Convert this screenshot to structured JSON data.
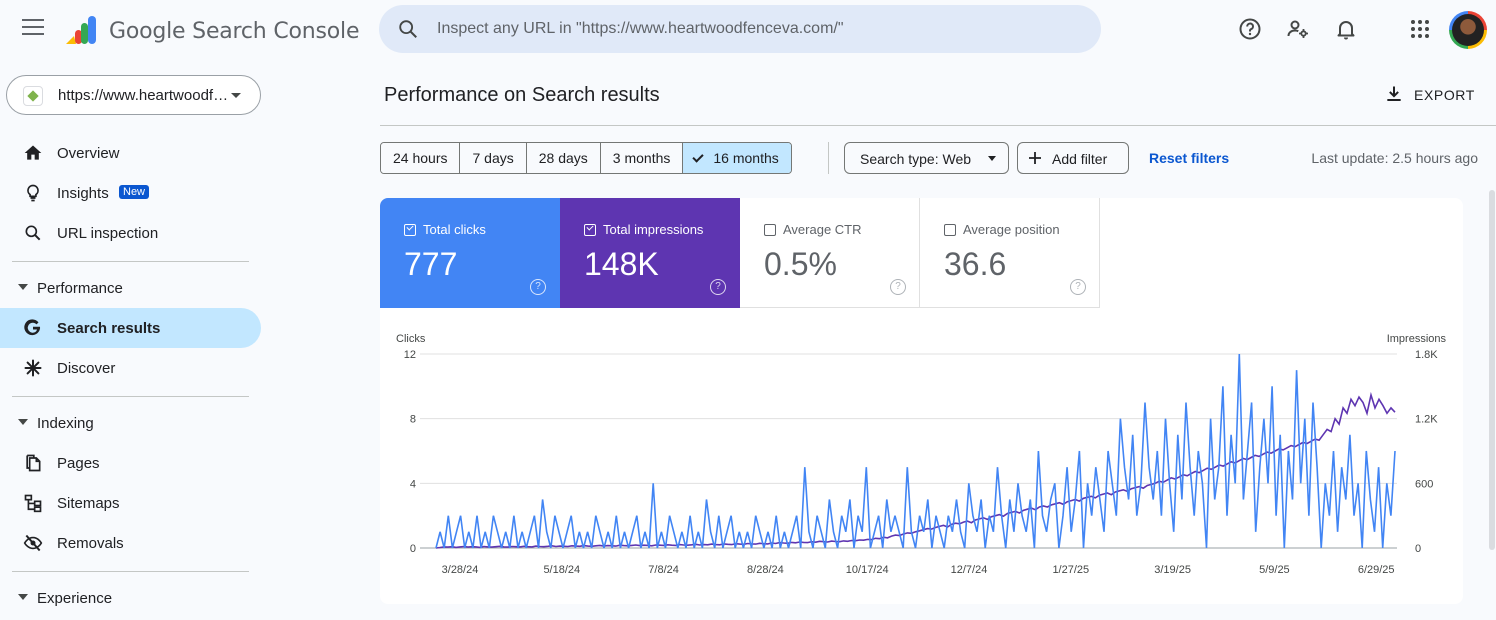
{
  "app": {
    "title": "Google Search Console"
  },
  "search": {
    "placeholder": "Inspect any URL in \"https://www.heartwoodfenceva.com/\""
  },
  "property": {
    "label": "https://www.heartwoodfenceva.com/"
  },
  "topbar_icons": [
    "help-icon",
    "manage-users-icon",
    "bell-icon",
    "apps-grid-icon"
  ],
  "sidebar": {
    "items": [
      {
        "label": "Overview",
        "icon": "home-icon"
      },
      {
        "label": "Insights",
        "icon": "lightbulb-icon",
        "badge": "New"
      },
      {
        "label": "URL inspection",
        "icon": "search-icon"
      }
    ],
    "sections": [
      {
        "label": "Performance",
        "items": [
          {
            "label": "Search results",
            "icon": "google-g-icon",
            "active": true
          },
          {
            "label": "Discover",
            "icon": "asterisk-icon"
          }
        ]
      },
      {
        "label": "Indexing",
        "items": [
          {
            "label": "Pages",
            "icon": "pages-icon"
          },
          {
            "label": "Sitemaps",
            "icon": "sitemap-icon"
          },
          {
            "label": "Removals",
            "icon": "eye-off-icon"
          }
        ]
      },
      {
        "label": "Experience",
        "items": []
      }
    ]
  },
  "main": {
    "title": "Performance on Search results",
    "export_label": "EXPORT",
    "date_ranges": [
      "24 hours",
      "7 days",
      "28 days",
      "3 months",
      "16 months"
    ],
    "selected_range": "16 months",
    "search_type": "Search type: Web",
    "add_filter": "Add filter",
    "reset_filters": "Reset filters",
    "last_update": "Last update: 2.5 hours ago"
  },
  "metrics": [
    {
      "label": "Total clicks",
      "value": "777",
      "checked": true,
      "color": "#4285f4"
    },
    {
      "label": "Total impressions",
      "value": "148K",
      "checked": true,
      "color": "#5e35b1"
    },
    {
      "label": "Average CTR",
      "value": "0.5%",
      "checked": false
    },
    {
      "label": "Average position",
      "value": "36.6",
      "checked": false
    }
  ],
  "chart_data": {
    "type": "line",
    "x_tick_labels": [
      "3/28/24",
      "5/18/24",
      "7/8/24",
      "8/28/24",
      "10/17/24",
      "12/7/24",
      "1/27/25",
      "3/19/25",
      "5/9/25",
      "6/29/25"
    ],
    "left_axis": {
      "label": "Clicks",
      "ticks": [
        "0",
        "4",
        "8",
        "12"
      ],
      "ylim": [
        0,
        12
      ]
    },
    "right_axis": {
      "label": "Impressions",
      "ticks": [
        "0",
        "600",
        "1.2K",
        "1.8K"
      ],
      "ylim": [
        0,
        1800
      ]
    },
    "series": [
      {
        "name": "Clicks",
        "axis": "left",
        "color": "#4285f4",
        "values": [
          0,
          1,
          0,
          2,
          0,
          1,
          2,
          0,
          1,
          0,
          2,
          0,
          1,
          0,
          2,
          1,
          0,
          1,
          0,
          2,
          0,
          1,
          0,
          1,
          2,
          0,
          3,
          1,
          0,
          2,
          1,
          0,
          1,
          2,
          0,
          1,
          0,
          1,
          0,
          2,
          1,
          0,
          1,
          0,
          2,
          0,
          1,
          0,
          1,
          2,
          0,
          1,
          0,
          4,
          0,
          1,
          0,
          2,
          1,
          0,
          1,
          0,
          2,
          0,
          1,
          0,
          3,
          1,
          0,
          2,
          0,
          1,
          2,
          0,
          1,
          0,
          1,
          0,
          2,
          1,
          0,
          1,
          0,
          2,
          0,
          1,
          0,
          1,
          2,
          0,
          5,
          1,
          0,
          2,
          1,
          0,
          3,
          1,
          0,
          2,
          1,
          3,
          0,
          2,
          1,
          5,
          0,
          1,
          2,
          0,
          3,
          1,
          2,
          1,
          0,
          5,
          1,
          0,
          2,
          1,
          3,
          0,
          2,
          1,
          0,
          2,
          1,
          3,
          1,
          0,
          4,
          2,
          1,
          3,
          0,
          2,
          1,
          5,
          2,
          0,
          3,
          1,
          4,
          2,
          1,
          3,
          0,
          6,
          2,
          1,
          3,
          4,
          0,
          2,
          5,
          1,
          3,
          6,
          0,
          4,
          2,
          5,
          3,
          1,
          6,
          4,
          2,
          8,
          5,
          3,
          7,
          2,
          4,
          9,
          5,
          3,
          6,
          2,
          8,
          4,
          1,
          7,
          3,
          9,
          5,
          2,
          6,
          4,
          0,
          8,
          3,
          5,
          10,
          2,
          7,
          4,
          12,
          3,
          6,
          9,
          1,
          5,
          8,
          4,
          10,
          2,
          7,
          0,
          6,
          3,
          11,
          4,
          8,
          2,
          9,
          5,
          0,
          4,
          2,
          6,
          1,
          5,
          3,
          7,
          2,
          4,
          0,
          6,
          3,
          1,
          5,
          0,
          4,
          2,
          6
        ]
      },
      {
        "name": "Impressions",
        "axis": "right",
        "color": "#5e35b1",
        "values": [
          0,
          5,
          10,
          8,
          12,
          6,
          10,
          14,
          8,
          12,
          10,
          6,
          14,
          10,
          8,
          12,
          16,
          10,
          8,
          14,
          12,
          10,
          16,
          12,
          10,
          18,
          14,
          12,
          16,
          20,
          14,
          18,
          16,
          14,
          20,
          18,
          16,
          22,
          18,
          16,
          20,
          24,
          18,
          22,
          20,
          18,
          26,
          22,
          20,
          24,
          28,
          22,
          26,
          24,
          20,
          28,
          26,
          24,
          30,
          26,
          24,
          32,
          28,
          26,
          30,
          34,
          28,
          32,
          30,
          36,
          32,
          30,
          38,
          34,
          32,
          40,
          36,
          34,
          42,
          38,
          36,
          44,
          40,
          38,
          46,
          42,
          50,
          46,
          44,
          52,
          48,
          56,
          52,
          50,
          58,
          54,
          62,
          58,
          56,
          64,
          60,
          58,
          66,
          62,
          70,
          68,
          74,
          72,
          80,
          78,
          90,
          86,
          100,
          94,
          110,
          120,
          116,
          130,
          140,
          136,
          150,
          160,
          170,
          180,
          175,
          190,
          200,
          210,
          195,
          220,
          230,
          225,
          240,
          250,
          235,
          260,
          270,
          280,
          265,
          290,
          300,
          310,
          295,
          320,
          330,
          340,
          325,
          350,
          360,
          370,
          355,
          380,
          390,
          380,
          400,
          410,
          420,
          405,
          430,
          440,
          450,
          435,
          460,
          470,
          480,
          465,
          490,
          500,
          510,
          495,
          520,
          530,
          540,
          525,
          550,
          560,
          570,
          555,
          580,
          590,
          600,
          620,
          610,
          630,
          650,
          640,
          660,
          680,
          670,
          690,
          710,
          700,
          720,
          740,
          730,
          750,
          770,
          760,
          780,
          800,
          790,
          810,
          830,
          820,
          840,
          860,
          850,
          870,
          890,
          880,
          900,
          920,
          910,
          930,
          950,
          940,
          960,
          980,
          970,
          990,
          1010,
          1000,
          1050,
          1100,
          1080,
          1200,
          1150,
          1300,
          1250,
          1380,
          1320,
          1400,
          1350,
          1250,
          1420,
          1300,
          1380,
          1320,
          1250,
          1300,
          1260
        ]
      }
    ]
  }
}
